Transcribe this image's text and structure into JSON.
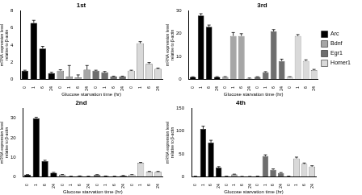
{
  "chart_data": [
    {
      "type": "bar",
      "title": "1st",
      "x_label": "Glucose starvation time (hr)",
      "y_label": [
        "mRNA expression level",
        "relative to β-actin"
      ],
      "categories": [
        "0",
        "1",
        "6",
        "24"
      ],
      "series": [
        {
          "name": "Arc",
          "color": "#000000",
          "values": [
            1,
            6.6,
            3.6,
            0.7
          ],
          "errors": [
            0.05,
            0.3,
            0.25,
            0.1
          ]
        },
        {
          "name": "Bdnf",
          "color": "#a6a6a6",
          "values": [
            1,
            0.3,
            0.2,
            1.1
          ],
          "errors": [
            0.1,
            1.3,
            0.3,
            0.5
          ]
        },
        {
          "name": "Egr1",
          "color": "#6e6e6e",
          "values": [
            1,
            0.8,
            0.3,
            0.3
          ],
          "errors": [
            0.05,
            0.1,
            0.05,
            0.05
          ]
        },
        {
          "name": "Homer1",
          "color": "#d9d9d9",
          "values": [
            1,
            4.2,
            1.8,
            1.2
          ],
          "errors": [
            0.05,
            0.2,
            0.15,
            0.1
          ]
        }
      ],
      "ylim": [
        0,
        8
      ],
      "yticks": [
        0,
        2,
        4,
        6,
        8
      ],
      "grid": false
    },
    {
      "type": "bar",
      "title": "3rd",
      "x_label": "Glucose starvation time (hr)",
      "y_label": [
        "mRNA expression level",
        "relative to β-actin"
      ],
      "categories": [
        "0",
        "1",
        "6",
        "24"
      ],
      "series": [
        {
          "name": "Arc",
          "color": "#000000",
          "values": [
            1,
            28,
            23,
            1
          ],
          "errors": [
            0.05,
            0.8,
            0.8,
            0.1
          ]
        },
        {
          "name": "Bdnf",
          "color": "#a6a6a6",
          "values": [
            1,
            19,
            19,
            0.3
          ],
          "errors": [
            0.1,
            1.5,
            1.0,
            0.2
          ]
        },
        {
          "name": "Egr1",
          "color": "#6e6e6e",
          "values": [
            1,
            3,
            21,
            8
          ],
          "errors": [
            0.05,
            0.3,
            0.8,
            0.8
          ]
        },
        {
          "name": "Homer1",
          "color": "#d9d9d9",
          "values": [
            1,
            19,
            8,
            4
          ],
          "errors": [
            0.05,
            0.6,
            0.5,
            0.3
          ]
        }
      ],
      "ylim": [
        0,
        30
      ],
      "yticks": [
        0,
        10,
        20,
        30
      ],
      "grid": false,
      "legend": "right"
    },
    {
      "type": "bar",
      "title": "2nd",
      "x_label": "Glucose starvation time (hr)",
      "y_label": [
        "mRNA expression level",
        "relative to β-actin"
      ],
      "categories": [
        "0",
        "1",
        "6",
        "24"
      ],
      "series": [
        {
          "name": "Arc",
          "color": "#000000",
          "values": [
            1,
            30,
            8,
            2
          ],
          "errors": [
            0.05,
            0.5,
            0.4,
            0.2
          ]
        },
        {
          "name": "Bdnf",
          "color": "#a6a6a6",
          "values": [
            1,
            0.2,
            0.3,
            0.2
          ],
          "errors": [
            0.1,
            0.05,
            0.1,
            0.05
          ]
        },
        {
          "name": "Egr1",
          "color": "#6e6e6e",
          "values": [
            1,
            0.3,
            0.2,
            0.5
          ],
          "errors": [
            0.05,
            0.05,
            0.05,
            0.1
          ]
        },
        {
          "name": "Homer1",
          "color": "#d9d9d9",
          "values": [
            1,
            7,
            2.5,
            2.5
          ],
          "errors": [
            0.05,
            0.3,
            0.2,
            0.2
          ]
        }
      ],
      "ylim": [
        0,
        35
      ],
      "yticks": [
        0,
        10,
        20,
        30
      ],
      "grid": false
    },
    {
      "type": "bar",
      "title": "4th",
      "x_label": "Glucose starvation time (hr)",
      "y_label": [
        "mRNA expression level",
        "relative to β-actin"
      ],
      "categories": [
        "0",
        "1",
        "6",
        "24"
      ],
      "series": [
        {
          "name": "Arc",
          "color": "#000000",
          "values": [
            1,
            105,
            75,
            20
          ],
          "errors": [
            0.1,
            6,
            5,
            2
          ]
        },
        {
          "name": "Bdnf",
          "color": "#a6a6a6",
          "values": [
            1,
            5,
            0.5,
            0.5
          ],
          "errors": [
            0.1,
            0.5,
            0.1,
            0.1
          ]
        },
        {
          "name": "Egr1",
          "color": "#6e6e6e",
          "values": [
            1,
            45,
            15,
            8
          ],
          "errors": [
            0.1,
            3,
            2,
            1
          ]
        },
        {
          "name": "Homer1",
          "color": "#d9d9d9",
          "values": [
            1,
            40,
            28,
            22
          ],
          "errors": [
            0.1,
            3,
            2,
            2
          ]
        }
      ],
      "ylim": [
        0,
        150
      ],
      "yticks": [
        0,
        50,
        100,
        150
      ],
      "grid": false
    }
  ]
}
